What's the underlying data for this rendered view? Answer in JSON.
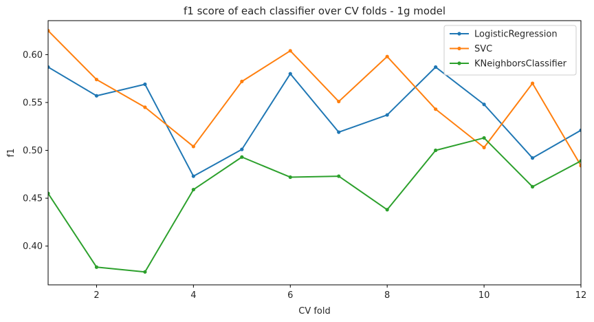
{
  "chart_data": {
    "type": "line",
    "title": "f1 score of each classifier over CV folds - 1g model",
    "xlabel": "CV fold",
    "ylabel": "f1",
    "x": [
      1,
      2,
      3,
      4,
      5,
      6,
      7,
      8,
      9,
      10,
      11,
      12
    ],
    "xlim": [
      1,
      12
    ],
    "ylim": [
      0.3595,
      0.6355
    ],
    "xticks": [
      2,
      4,
      6,
      8,
      10,
      12
    ],
    "yticks": [
      0.4,
      0.45,
      0.5,
      0.55,
      0.6
    ],
    "ytick_labels": [
      "0.40",
      "0.45",
      "0.50",
      "0.55",
      "0.60"
    ],
    "grid": false,
    "legend_position": "top-right",
    "series": [
      {
        "name": "LogisticRegression",
        "color": "#1f77b4",
        "values": [
          0.587,
          0.557,
          0.569,
          0.473,
          0.501,
          0.58,
          0.519,
          0.537,
          0.587,
          0.548,
          0.492,
          0.521
        ]
      },
      {
        "name": "SVC",
        "color": "#ff7f0e",
        "values": [
          0.625,
          0.574,
          0.545,
          0.504,
          0.572,
          0.604,
          0.551,
          0.598,
          0.543,
          0.503,
          0.57,
          0.484
        ]
      },
      {
        "name": "KNeighborsClassifier",
        "color": "#2ca02c",
        "values": [
          0.455,
          0.378,
          0.373,
          0.459,
          0.493,
          0.472,
          0.473,
          0.438,
          0.5,
          0.513,
          0.462,
          0.489
        ]
      }
    ]
  }
}
